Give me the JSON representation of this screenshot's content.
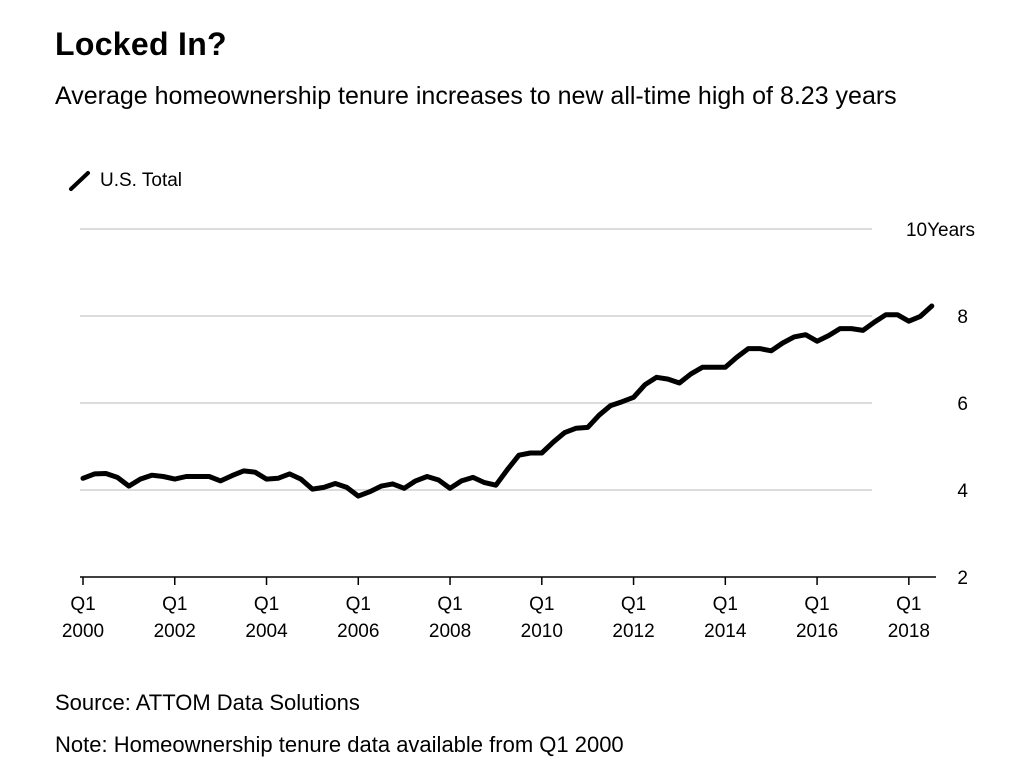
{
  "chart_data": {
    "type": "line",
    "title": "Locked In?",
    "subtitle": "Average homeownership tenure increases to new all-time high of 8.23 years",
    "legend": {
      "position": "top-left"
    },
    "grid": true,
    "ylim": [
      2,
      10
    ],
    "yticks": [
      {
        "value": 10,
        "label": "10Years"
      },
      {
        "value": 8,
        "label": "8"
      },
      {
        "value": 6,
        "label": "6"
      },
      {
        "value": 4,
        "label": "4"
      },
      {
        "value": 2,
        "label": "2"
      }
    ],
    "xticks": [
      {
        "q": "Q1",
        "year": "2000"
      },
      {
        "q": "Q1",
        "year": "2002"
      },
      {
        "q": "Q1",
        "year": "2004"
      },
      {
        "q": "Q1",
        "year": "2006"
      },
      {
        "q": "Q1",
        "year": "2008"
      },
      {
        "q": "Q1",
        "year": "2010"
      },
      {
        "q": "Q1",
        "year": "2012"
      },
      {
        "q": "Q1",
        "year": "2014"
      },
      {
        "q": "Q1",
        "year": "2016"
      },
      {
        "q": "Q1",
        "year": "2018"
      }
    ],
    "x_start": "Q1 2000",
    "x_end": "Q3 2018",
    "series": [
      {
        "name": "U.S. Total",
        "color": "#000000",
        "values": [
          4.27,
          4.37,
          4.38,
          4.29,
          4.09,
          4.25,
          4.34,
          4.31,
          4.25,
          4.31,
          4.31,
          4.31,
          4.21,
          4.33,
          4.44,
          4.41,
          4.25,
          4.27,
          4.37,
          4.25,
          4.02,
          4.06,
          4.15,
          4.06,
          3.86,
          3.96,
          4.09,
          4.14,
          4.04,
          4.21,
          4.31,
          4.23,
          4.04,
          4.21,
          4.29,
          4.17,
          4.11,
          4.47,
          4.8,
          4.85,
          4.85,
          5.1,
          5.32,
          5.42,
          5.44,
          5.72,
          5.94,
          6.03,
          6.13,
          6.42,
          6.59,
          6.55,
          6.46,
          6.67,
          6.82,
          6.82,
          6.82,
          7.05,
          7.25,
          7.25,
          7.2,
          7.38,
          7.52,
          7.57,
          7.42,
          7.55,
          7.71,
          7.71,
          7.67,
          7.86,
          8.03,
          8.03,
          7.88,
          7.99,
          8.23
        ]
      }
    ]
  },
  "footer": {
    "source": "Source: ATTOM Data Solutions",
    "note": "Note: Homeownership tenure data available from Q1 2000"
  },
  "colors": {
    "grid": "#dcdcdc",
    "line": "#000000"
  }
}
